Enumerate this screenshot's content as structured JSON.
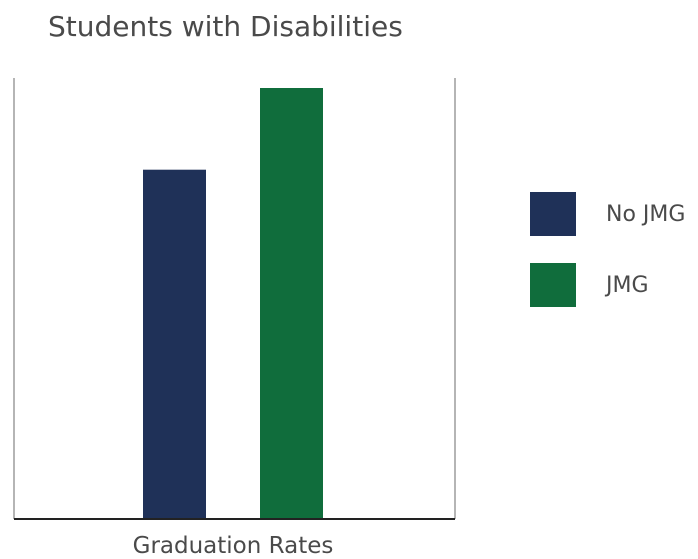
{
  "chart_data": {
    "type": "bar",
    "title": "Students with Disabilities",
    "categories": [
      "Graduation Rates"
    ],
    "series": [
      {
        "name": "No JMG",
        "values": [
          81
        ],
        "color": "#1f3158"
      },
      {
        "name": "JMG",
        "values": [
          100
        ],
        "color": "#106d3c"
      }
    ],
    "xlabel": "Graduation Rates",
    "ylabel": "",
    "ylim": [
      0,
      100
    ],
    "grid": false,
    "legend": "right"
  }
}
